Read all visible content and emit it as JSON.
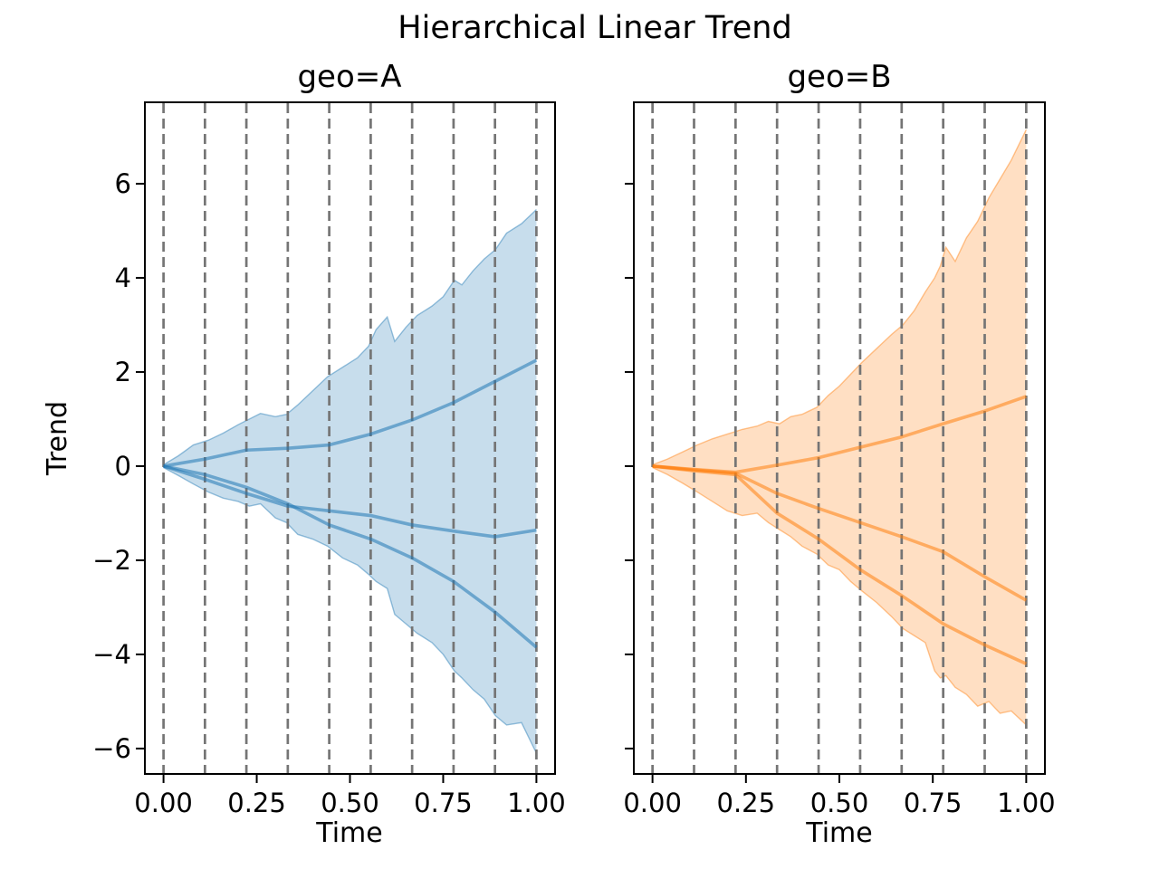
{
  "title": "Hierarchical Linear Trend",
  "grid_color": "#757575",
  "background": "#ffffff",
  "chart_data": [
    {
      "type": "line",
      "title": "geo=A",
      "xlabel": "Time",
      "ylabel": "Trend",
      "color": "#1f77b4",
      "legend": "none",
      "grid": "vertical-dashed-changepoints",
      "xlim": [
        -0.05,
        1.05
      ],
      "ylim": [
        -6.54,
        7.73
      ],
      "xticks": [
        0,
        0.25,
        0.5,
        0.75,
        1.0
      ],
      "xtick_labels": [
        "0.00",
        "0.25",
        "0.50",
        "0.75",
        "1.00"
      ],
      "yticks": [
        6,
        4,
        2,
        0,
        -2,
        -4,
        -6
      ],
      "ytick_labels": [
        "6",
        "4",
        "2",
        "0",
        "−2",
        "−4",
        "−6"
      ],
      "show_ytick_labels": true,
      "changepoints": [
        0,
        0.1111,
        0.2222,
        0.3333,
        0.4444,
        0.5556,
        0.6667,
        0.7778,
        0.8889,
        1.0
      ],
      "band": {
        "x": [
          0,
          0.04,
          0.08,
          0.12,
          0.16,
          0.2,
          0.23,
          0.26,
          0.3,
          0.33,
          0.36,
          0.4,
          0.44,
          0.48,
          0.52,
          0.55,
          0.57,
          0.6,
          0.62,
          0.65,
          0.68,
          0.72,
          0.75,
          0.78,
          0.8,
          0.83,
          0.86,
          0.89,
          0.92,
          0.96,
          1.0
        ],
        "upper": [
          0.03,
          0.22,
          0.45,
          0.55,
          0.7,
          0.88,
          1.0,
          1.12,
          1.05,
          1.1,
          1.3,
          1.6,
          1.9,
          2.1,
          2.3,
          2.55,
          2.9,
          3.17,
          2.65,
          2.95,
          3.2,
          3.4,
          3.6,
          3.95,
          3.85,
          4.15,
          4.4,
          4.6,
          4.95,
          5.15,
          5.45
        ],
        "lower": [
          -0.03,
          -0.2,
          -0.38,
          -0.55,
          -0.68,
          -0.75,
          -0.85,
          -0.8,
          -1.1,
          -1.2,
          -1.45,
          -1.55,
          -1.7,
          -1.95,
          -2.1,
          -2.3,
          -2.45,
          -2.6,
          -3.15,
          -3.35,
          -3.55,
          -3.75,
          -4.0,
          -4.35,
          -4.5,
          -4.75,
          -4.95,
          -5.3,
          -5.5,
          -5.45,
          -6.1
        ]
      },
      "series": [
        {
          "x": [
            0,
            0.1111,
            0.2222,
            0.3333,
            0.4444,
            0.5556,
            0.6667,
            0.7778,
            0.8889,
            1.0
          ],
          "y": [
            0,
            0.15,
            0.34,
            0.38,
            0.45,
            0.68,
            0.98,
            1.35,
            1.8,
            2.25
          ]
        },
        {
          "x": [
            0,
            0.1111,
            0.2222,
            0.3333,
            0.4444,
            0.5556,
            0.6667,
            0.7778,
            0.8889,
            1.0
          ],
          "y": [
            0,
            -0.28,
            -0.58,
            -0.85,
            -0.95,
            -1.05,
            -1.25,
            -1.38,
            -1.5,
            -1.36
          ]
        },
        {
          "x": [
            0,
            0.1111,
            0.2222,
            0.3333,
            0.4444,
            0.5556,
            0.6667,
            0.7778,
            0.8889,
            1.0
          ],
          "y": [
            0,
            -0.18,
            -0.45,
            -0.8,
            -1.25,
            -1.55,
            -1.95,
            -2.45,
            -3.1,
            -3.85
          ]
        }
      ]
    },
    {
      "type": "line",
      "title": "geo=B",
      "xlabel": "Time",
      "ylabel": "",
      "color": "#ff7f0e",
      "legend": "none",
      "grid": "vertical-dashed-changepoints",
      "xlim": [
        -0.05,
        1.05
      ],
      "ylim": [
        -6.54,
        7.73
      ],
      "xticks": [
        0,
        0.25,
        0.5,
        0.75,
        1.0
      ],
      "xtick_labels": [
        "0.00",
        "0.25",
        "0.50",
        "0.75",
        "1.00"
      ],
      "yticks": [
        6,
        4,
        2,
        0,
        -2,
        -4,
        -6
      ],
      "ytick_labels": [
        "6",
        "4",
        "2",
        "0",
        "−2",
        "−4",
        "−6"
      ],
      "show_ytick_labels": false,
      "changepoints": [
        0,
        0.1111,
        0.2222,
        0.3333,
        0.4444,
        0.5556,
        0.6667,
        0.7778,
        0.8889,
        1.0
      ],
      "band": {
        "x": [
          0,
          0.04,
          0.08,
          0.12,
          0.16,
          0.2,
          0.24,
          0.28,
          0.31,
          0.34,
          0.37,
          0.4,
          0.44,
          0.47,
          0.5,
          0.53,
          0.56,
          0.6,
          0.64,
          0.67,
          0.7,
          0.73,
          0.755,
          0.77,
          0.785,
          0.81,
          0.84,
          0.87,
          0.9,
          0.93,
          0.96,
          1.0
        ],
        "upper": [
          0.03,
          0.15,
          0.3,
          0.45,
          0.58,
          0.68,
          0.78,
          0.85,
          0.95,
          0.9,
          1.05,
          1.1,
          1.25,
          1.5,
          1.7,
          1.95,
          2.2,
          2.5,
          2.8,
          3.0,
          3.3,
          3.7,
          4.0,
          4.25,
          4.65,
          4.35,
          4.85,
          5.2,
          5.7,
          6.1,
          6.5,
          7.15
        ],
        "lower": [
          -0.03,
          -0.18,
          -0.36,
          -0.55,
          -0.75,
          -0.95,
          -1.05,
          -1.0,
          -1.2,
          -1.35,
          -1.5,
          -1.7,
          -1.87,
          -2.1,
          -2.2,
          -2.45,
          -2.65,
          -2.9,
          -3.2,
          -3.45,
          -3.6,
          -3.75,
          -4.35,
          -4.5,
          -4.45,
          -4.7,
          -4.85,
          -5.1,
          -5.0,
          -5.25,
          -5.2,
          -5.5
        ]
      },
      "series": [
        {
          "x": [
            0,
            0.1111,
            0.2222,
            0.3333,
            0.4444,
            0.5556,
            0.6667,
            0.7778,
            0.8889,
            1.0
          ],
          "y": [
            0,
            -0.07,
            -0.13,
            0.02,
            0.18,
            0.4,
            0.62,
            0.9,
            1.17,
            1.48
          ]
        },
        {
          "x": [
            0,
            0.1111,
            0.2222,
            0.3333,
            0.4444,
            0.5556,
            0.6667,
            0.7778,
            0.8889,
            1.0
          ],
          "y": [
            0,
            -0.08,
            -0.15,
            -0.58,
            -0.9,
            -1.2,
            -1.5,
            -1.82,
            -2.35,
            -2.85
          ]
        },
        {
          "x": [
            0,
            0.1111,
            0.2222,
            0.3333,
            0.4444,
            0.5556,
            0.6667,
            0.7778,
            0.8889,
            1.0
          ],
          "y": [
            0,
            -0.1,
            -0.18,
            -1.0,
            -1.55,
            -2.2,
            -2.75,
            -3.35,
            -3.8,
            -4.2
          ]
        }
      ]
    }
  ]
}
